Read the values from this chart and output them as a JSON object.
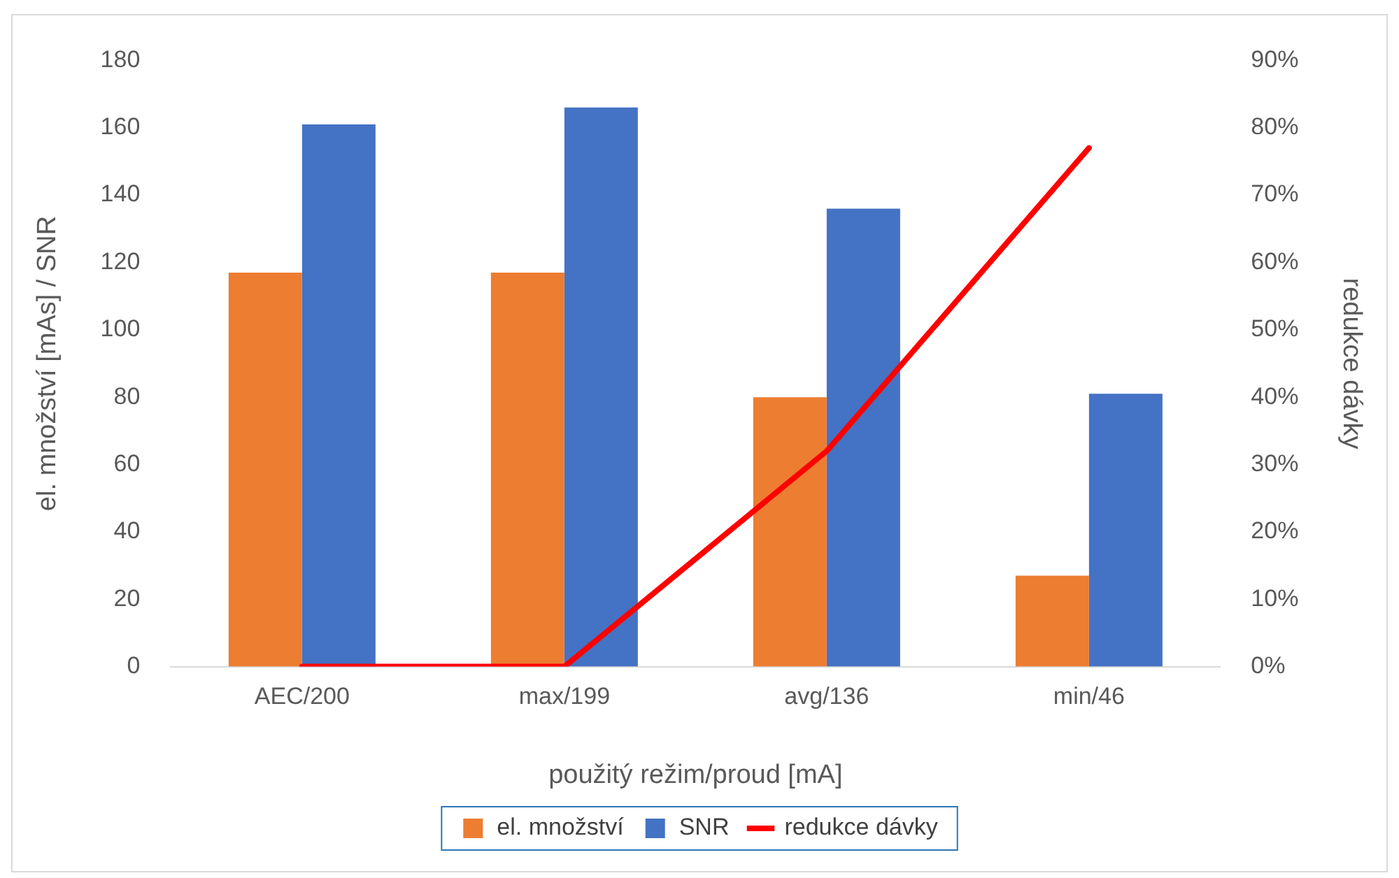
{
  "chart_data": {
    "type": "bar",
    "xlabel": "použitý režim/proud [mA]",
    "ylabel": "el. množství [mAs] / SNR",
    "y2label": "redukce dávky",
    "categories": [
      "AEC/200",
      "max/199",
      "avg/136",
      "min/46"
    ],
    "series": [
      {
        "name": "el. množství",
        "color": "#ed7d31",
        "values": [
          117,
          117,
          80,
          27
        ]
      },
      {
        "name": "SNR",
        "color": "#4472c4",
        "values": [
          161,
          166,
          136,
          81
        ]
      },
      {
        "name": "redukce dávky",
        "type": "line",
        "axis": "y2",
        "color": "#ff0000",
        "values": [
          0,
          0,
          32,
          77
        ]
      }
    ],
    "ylim": [
      0,
      180
    ],
    "yticks": [
      0,
      20,
      40,
      60,
      80,
      100,
      120,
      140,
      160,
      180
    ],
    "y2lim": [
      0,
      90
    ],
    "y2ticks": [
      {
        "value": 0,
        "label": "0%"
      },
      {
        "value": 10,
        "label": "10%"
      },
      {
        "value": 20,
        "label": "20%"
      },
      {
        "value": 30,
        "label": "30%"
      },
      {
        "value": 40,
        "label": "40%"
      },
      {
        "value": 50,
        "label": "50%"
      },
      {
        "value": 60,
        "label": "60%"
      },
      {
        "value": 70,
        "label": "70%"
      },
      {
        "value": 80,
        "label": "80%"
      },
      {
        "value": 90,
        "label": "90%"
      }
    ],
    "grid": false,
    "legend": "bottom",
    "marker": "none",
    "line_style": "solid"
  }
}
